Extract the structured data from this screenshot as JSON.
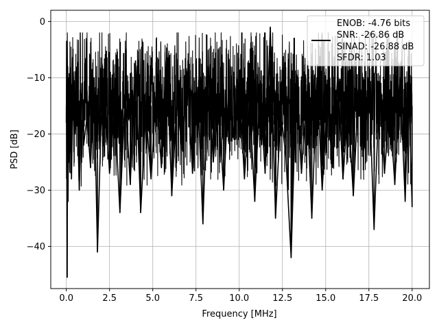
{
  "chart_data": {
    "type": "line",
    "title": "",
    "xlabel": "Frequency [MHz]",
    "ylabel": "PSD [dB]",
    "xlim": [
      -0.9,
      21.0
    ],
    "ylim": [
      -47.5,
      2.0
    ],
    "xticks": [
      0.0,
      2.5,
      5.0,
      7.5,
      10.0,
      12.5,
      15.0,
      17.5,
      20.0
    ],
    "xtick_labels": [
      "0.0",
      "2.5",
      "5.0",
      "7.5",
      "10.0",
      "12.5",
      "15.0",
      "17.5",
      "20.0"
    ],
    "yticks": [
      0,
      -10,
      -20,
      -30,
      -40
    ],
    "ytick_labels": [
      "0",
      "−10",
      "−20",
      "−30",
      "−40"
    ],
    "grid": true,
    "legend_position": "top-right",
    "series": [
      {
        "name": "",
        "color": "#000000",
        "x": [
          0.0,
          0.02,
          0.05,
          0.08,
          0.1,
          0.13,
          0.17,
          0.22,
          0.3,
          0.4,
          0.5,
          0.62,
          0.75,
          0.9,
          1.0,
          1.2,
          1.4,
          1.6,
          1.8,
          2.0,
          2.2,
          2.5,
          2.8,
          3.1,
          3.4,
          3.7,
          4.0,
          4.3,
          4.6,
          4.9,
          5.2,
          5.5,
          5.8,
          6.1,
          6.4,
          6.7,
          7.0,
          7.3,
          7.6,
          7.9,
          8.2,
          8.5,
          8.8,
          9.1,
          9.4,
          9.7,
          10.0,
          10.3,
          10.6,
          10.9,
          11.2,
          11.5,
          11.8,
          12.1,
          12.4,
          12.7,
          13.0,
          13.3,
          13.6,
          13.9,
          14.2,
          14.5,
          14.8,
          15.1,
          15.4,
          15.7,
          16.0,
          16.3,
          16.6,
          16.9,
          17.2,
          17.5,
          17.8,
          18.1,
          18.4,
          18.7,
          19.0,
          19.3,
          19.6,
          19.8,
          20.0
        ],
        "y": [
          -18,
          -3.5,
          -45.5,
          -8,
          -32,
          -10,
          -25,
          -12,
          -28,
          -9,
          -20,
          -14,
          -30,
          -11,
          -22,
          -17,
          -26,
          -10,
          -41,
          -19,
          -11,
          -27,
          -15,
          -34,
          -13,
          -29,
          -7,
          -34,
          -16,
          -28,
          -12,
          -26,
          -6,
          -31,
          -14,
          -23,
          -9,
          -27,
          -12,
          -36,
          -8,
          -25,
          -15,
          -30,
          -11,
          -21,
          -10,
          -28,
          -14,
          -32,
          -12,
          -27,
          -1,
          -35,
          -16,
          -24,
          -42,
          -11,
          -27,
          -13,
          -35,
          -10,
          -30,
          -14,
          -26,
          -9,
          -28,
          -15,
          -31,
          -12,
          -23,
          -10,
          -37,
          -12,
          -27,
          -15,
          -29,
          -10,
          -32,
          -11,
          -33
        ]
      }
    ],
    "legend": {
      "entries": [
        "ENOB: -4.76 bits",
        "SNR: -26.86 dB",
        "SINAD: -26.88 dB",
        "SFDR: 1.03"
      ]
    }
  }
}
